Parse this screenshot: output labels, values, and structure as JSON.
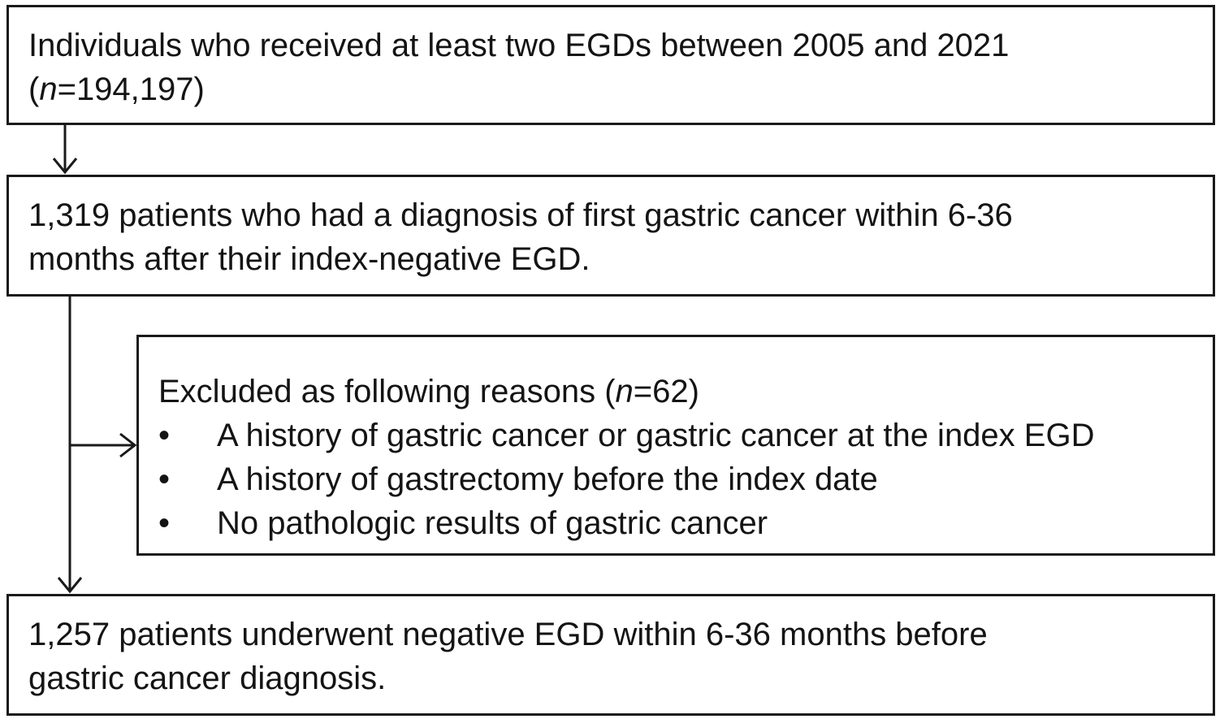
{
  "boxes": {
    "initial": {
      "line1": "Individuals who received at least two EGDs between 2005 and 2021",
      "n_prefix": "(",
      "n_symbol": "n",
      "n_value": "=194,197)"
    },
    "cancer": {
      "line1": "1,319 patients who had a diagnosis of first gastric cancer within 6-36",
      "line2": "months after their index-negative EGD."
    },
    "excluded": {
      "header_prefix": "Excluded as following reasons (",
      "n_symbol": "n",
      "header_suffix": "=62)",
      "bullet_symbol": "•",
      "reasons": [
        "A history of gastric cancer or gastric cancer at the index EGD",
        "A history of gastrectomy before the index date",
        "No pathologic results of gastric cancer"
      ]
    },
    "final": {
      "line1": "1,257 patients underwent negative EGD within 6-36 months before",
      "line2": "gastric cancer diagnosis."
    }
  },
  "colors": {
    "stroke": "#1a1a1a",
    "text": "#141414",
    "background": "#ffffff"
  }
}
